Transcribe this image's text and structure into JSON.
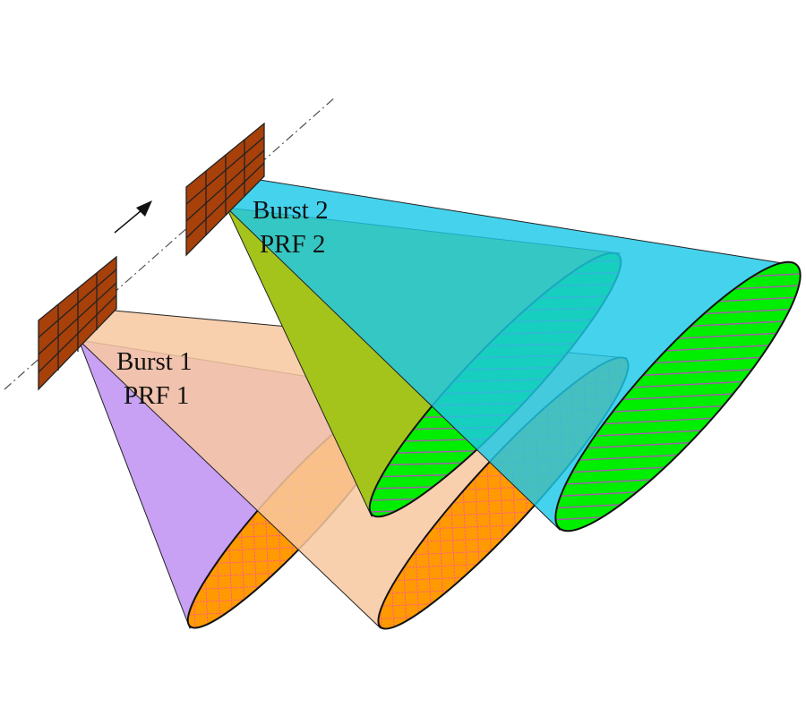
{
  "labels": {
    "burst1": "Burst 1",
    "prf1": "PRF 1",
    "burst2": "Burst 2",
    "prf2": "PRF 2"
  },
  "colors": {
    "antenna": "#a8400a",
    "burst1_near_cone": "#c8a0f4",
    "burst1_far_cone": "#f8c8a0",
    "burst1_footprint": "#ff9a00",
    "burst1_footprint_hatch": "#ff3ccc",
    "burst2_near_cone": "#a4c41c",
    "burst2_far_cone": "#1cc8e8",
    "burst2_footprint": "#00ee00",
    "burst2_footprint_stripe": "#a060a8"
  },
  "icons": {
    "motion": "arrow-icon"
  }
}
